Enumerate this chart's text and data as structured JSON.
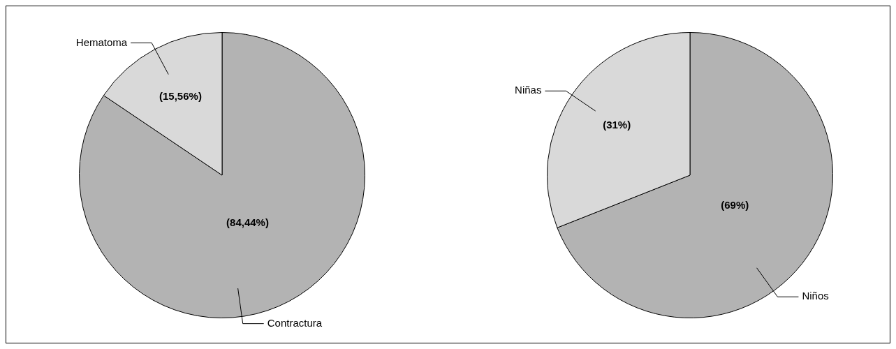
{
  "chart_data": [
    {
      "type": "pie",
      "categories": [
        "Contractura",
        "Hematoma"
      ],
      "values": [
        84.44,
        15.56
      ],
      "colors": [
        "#b3b3b3",
        "#d9d9d9"
      ],
      "value_labels": [
        "(84,44%)",
        "(15,56%)"
      ],
      "legend": false
    },
    {
      "type": "pie",
      "categories": [
        "Niños",
        "Niñas"
      ],
      "values": [
        69,
        31
      ],
      "colors": [
        "#b3b3b3",
        "#d9d9d9"
      ],
      "value_labels": [
        "(69%)",
        "(31%)"
      ],
      "legend": false
    }
  ]
}
